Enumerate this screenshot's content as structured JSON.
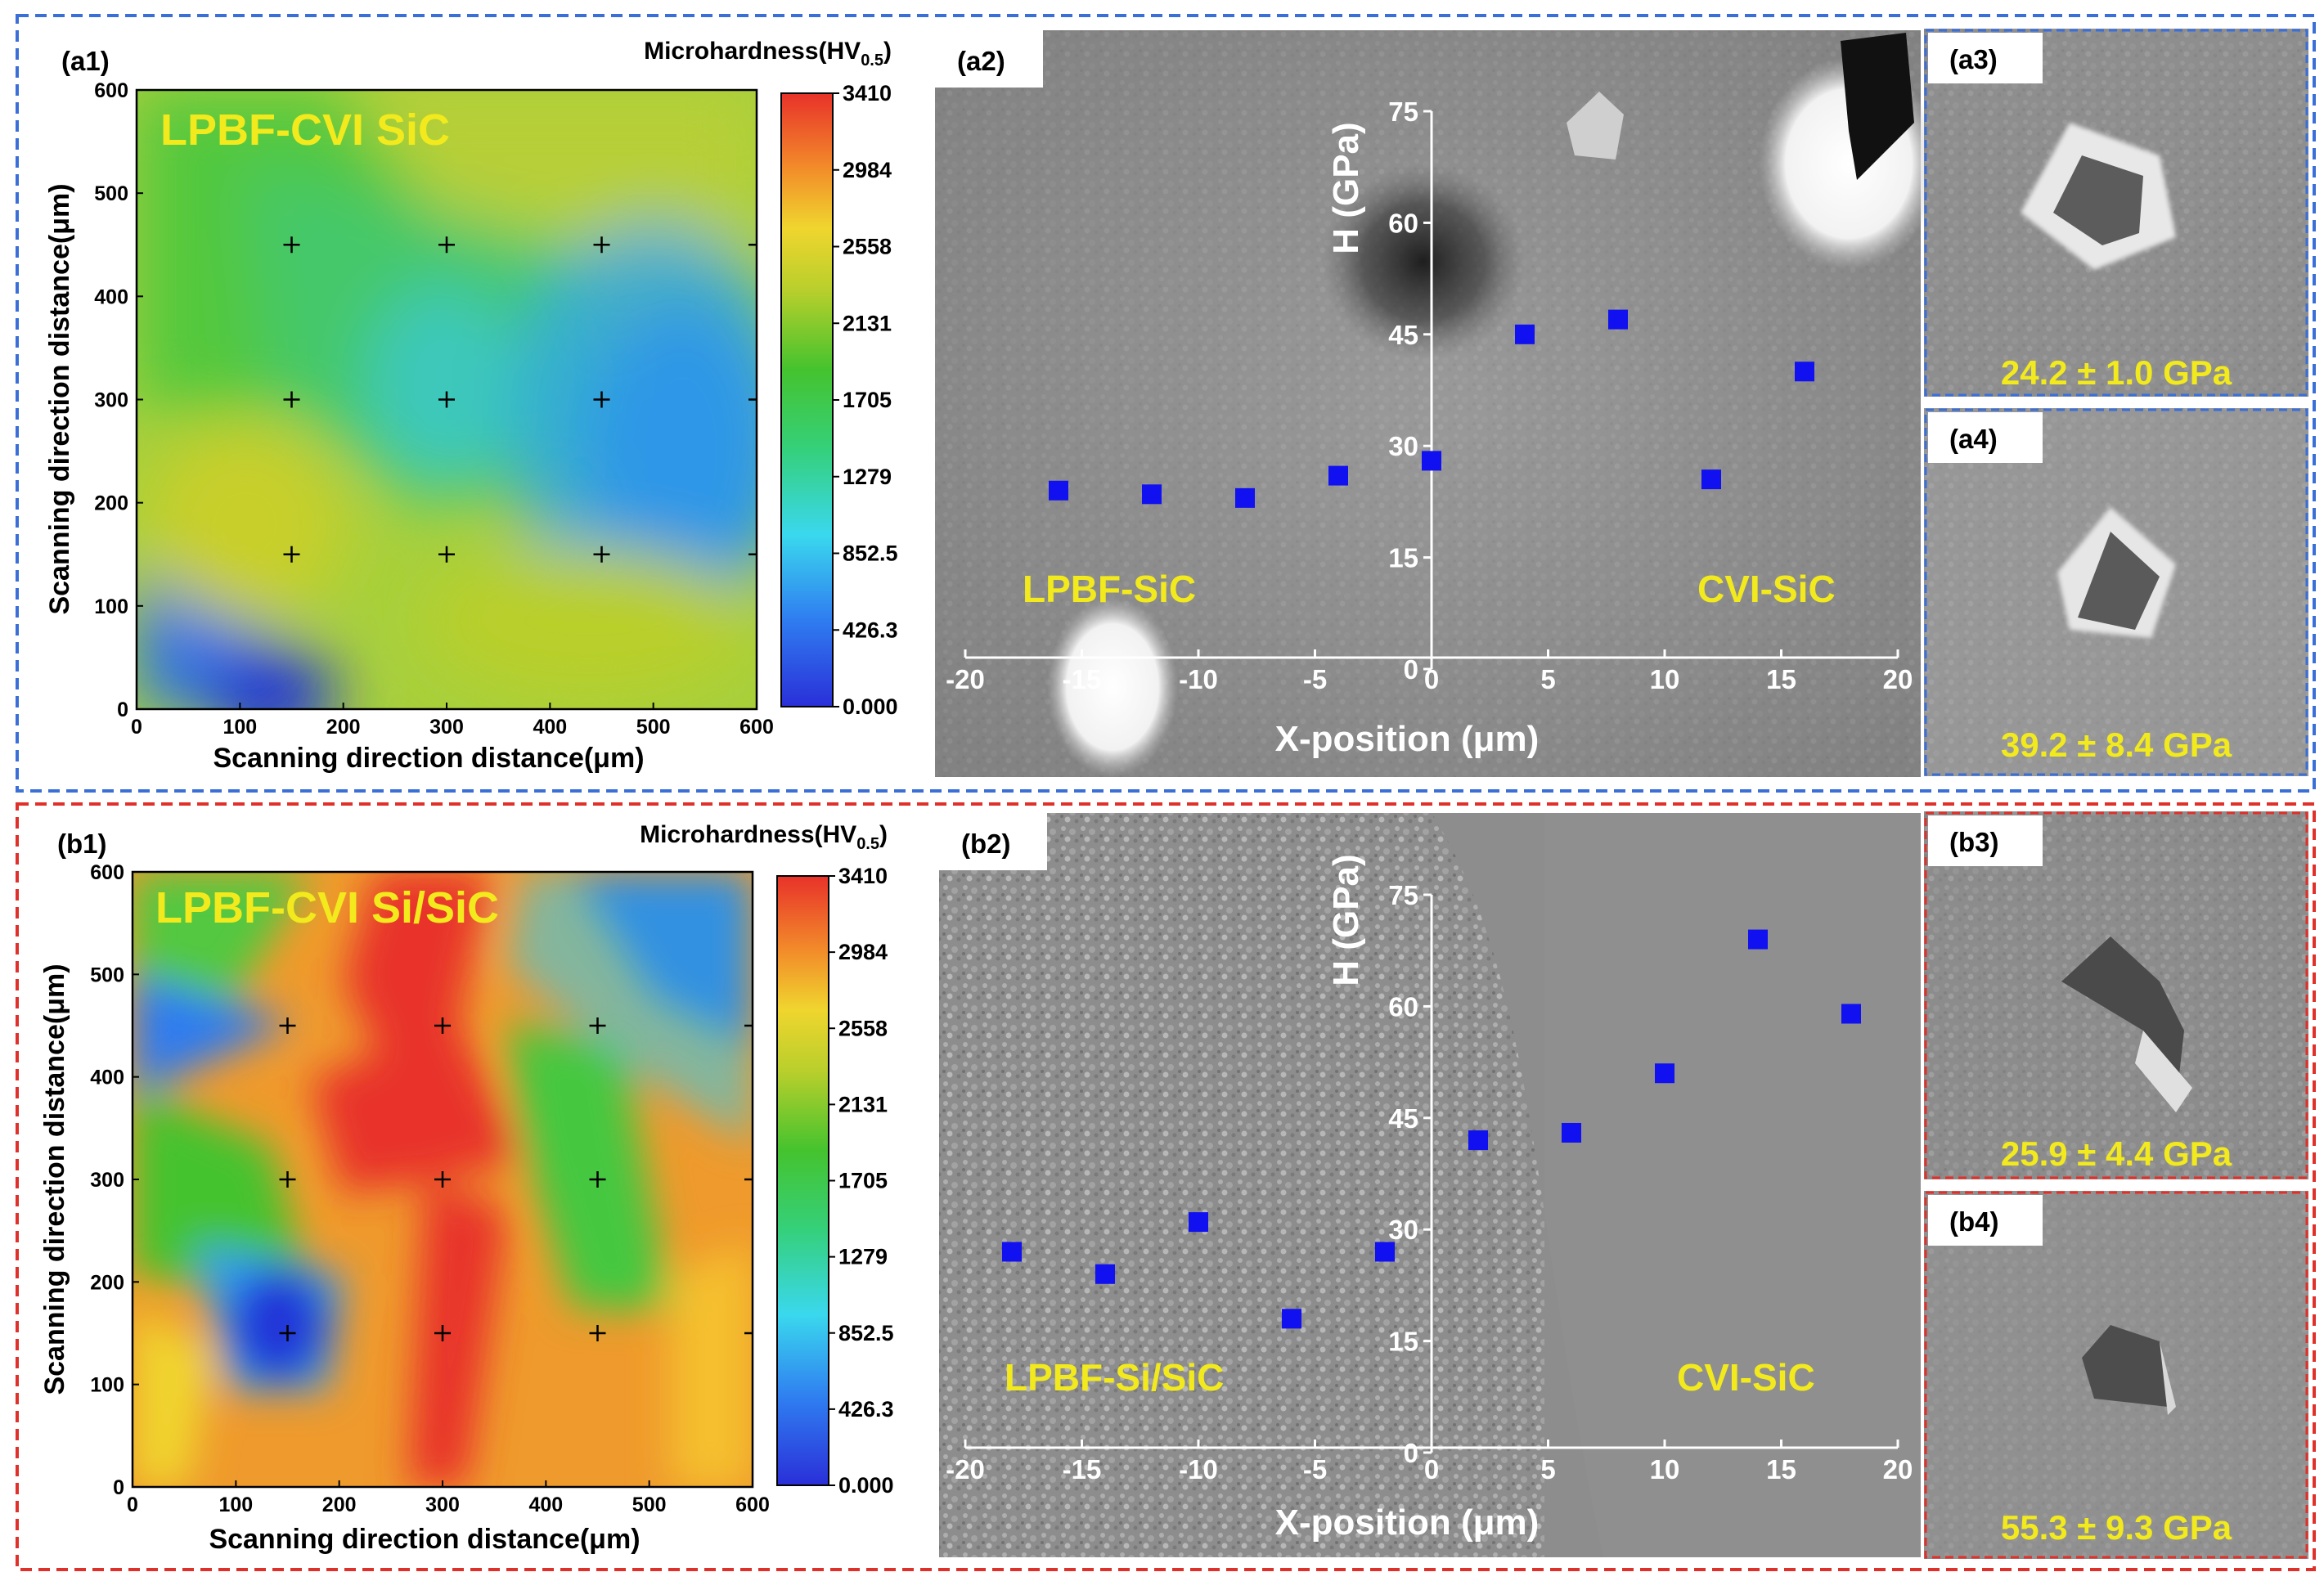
{
  "frames": {
    "top_color": "#3b6fd8",
    "bottom_color": "#e0302a"
  },
  "panels": {
    "a1": "(a1)",
    "a2": "(a2)",
    "a3": "(a3)",
    "a4": "(a4)",
    "b1": "(b1)",
    "b2": "(b2)",
    "b3": "(b3)",
    "b4": "(b4)"
  },
  "maps": {
    "a": {
      "material": "LPBF-CVI SiC"
    },
    "b": {
      "material": "LPBF-CVI Si/SiC"
    }
  },
  "colorbar": {
    "title_main": "Microhardness(HV",
    "title_sub": "0.5",
    "title_end": ")",
    "ticks": [
      "3410",
      "2984",
      "2558",
      "2131",
      "1705",
      "1279",
      "852.5",
      "426.3",
      "0.000"
    ]
  },
  "indents": {
    "a3": "24.2 ± 1.0 GPa",
    "a4": "39.2 ± 8.4 GPa",
    "b3": "25.9 ± 4.4 GPa",
    "b4": "55.3 ± 9.3 GPa"
  },
  "regions": {
    "a2_left": "LPBF-SiC",
    "a2_right": "CVI-SiC",
    "b2_left": "LPBF-Si/SiC",
    "b2_right": "CVI-SiC"
  },
  "chart_data": [
    {
      "type": "heatmap",
      "title": "LPBF-CVI SiC",
      "xlabel": "Scanning direction distance(μm)",
      "ylabel": "Scanning direction distance(μm)",
      "xlim": [
        0,
        600
      ],
      "ylim": [
        0,
        600
      ],
      "x_ticks": [
        "0",
        "100",
        "200",
        "300",
        "400",
        "500",
        "600"
      ],
      "y_ticks": [
        "0",
        "100",
        "200",
        "300",
        "400",
        "500",
        "600"
      ],
      "colorbar_range": [
        0,
        3410
      ],
      "indent_points": [
        [
          150,
          150
        ],
        [
          300,
          150
        ],
        [
          450,
          150
        ],
        [
          150,
          300
        ],
        [
          300,
          300
        ],
        [
          450,
          300
        ],
        [
          150,
          450
        ],
        [
          300,
          450
        ],
        [
          450,
          450
        ]
      ]
    },
    {
      "type": "scatter",
      "xlabel": "X-position (μm)",
      "ylabel": "H (GPa)",
      "xlim": [
        -20,
        20
      ],
      "ylim": [
        0,
        75
      ],
      "x_ticks": [
        "-20",
        "-15",
        "-10",
        "-5",
        "0",
        "5",
        "10",
        "15",
        "20"
      ],
      "y_ticks": [
        "0",
        "15",
        "30",
        "45",
        "60",
        "75"
      ],
      "marker_color": "#1010f0",
      "x": [
        -16,
        -12,
        -8,
        -4,
        0,
        4,
        8,
        12,
        16
      ],
      "y": [
        24,
        23.5,
        23,
        26,
        28,
        45,
        47,
        25.5,
        40
      ]
    },
    {
      "type": "heatmap",
      "title": "LPBF-CVI Si/SiC",
      "xlabel": "Scanning direction distance(μm)",
      "ylabel": "Scanning direction distance(μm)",
      "xlim": [
        0,
        600
      ],
      "ylim": [
        0,
        600
      ],
      "x_ticks": [
        "0",
        "100",
        "200",
        "300",
        "400",
        "500",
        "600"
      ],
      "y_ticks": [
        "0",
        "100",
        "200",
        "300",
        "400",
        "500",
        "600"
      ],
      "colorbar_range": [
        0,
        3410
      ],
      "indent_points": [
        [
          150,
          150
        ],
        [
          300,
          150
        ],
        [
          450,
          150
        ],
        [
          150,
          300
        ],
        [
          300,
          300
        ],
        [
          450,
          300
        ],
        [
          150,
          450
        ],
        [
          300,
          450
        ],
        [
          450,
          450
        ]
      ]
    },
    {
      "type": "scatter",
      "xlabel": "X-position (μm)",
      "ylabel": "H (GPa)",
      "xlim": [
        -20,
        20
      ],
      "ylim": [
        0,
        75
      ],
      "x_ticks": [
        "-20",
        "-15",
        "-10",
        "-5",
        "0",
        "5",
        "10",
        "15",
        "20"
      ],
      "y_ticks": [
        "0",
        "15",
        "30",
        "45",
        "60",
        "75"
      ],
      "marker_color": "#1010f0",
      "x": [
        -18,
        -14,
        -10,
        -6,
        -2,
        2,
        6,
        10,
        14,
        18
      ],
      "y": [
        27,
        24,
        31,
        18,
        27,
        42,
        43,
        51,
        69,
        59
      ]
    }
  ]
}
